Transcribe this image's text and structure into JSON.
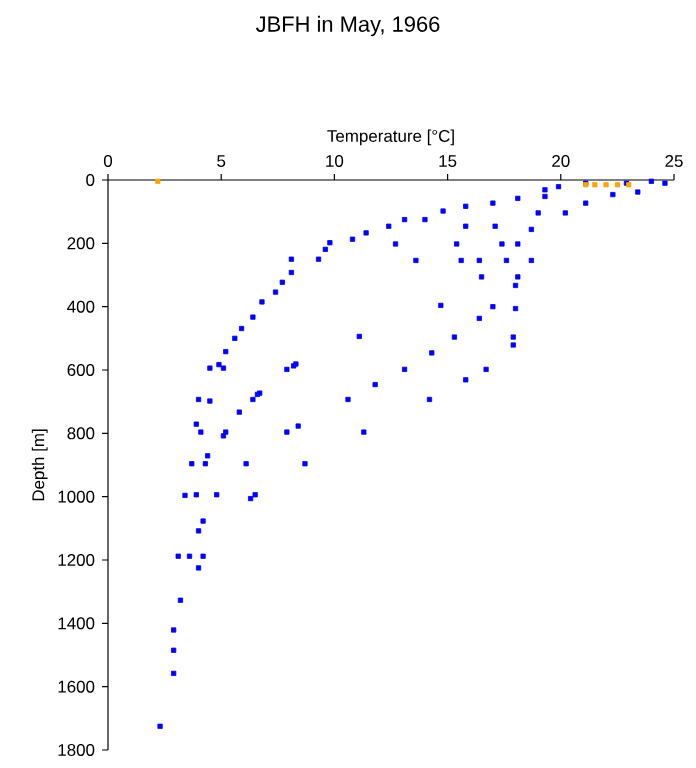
{
  "chart_data": {
    "type": "scatter",
    "title": "JBFH in May, 1966",
    "xlabel": "Temperature [°C]",
    "ylabel": "Depth [m]",
    "xlim": [
      0,
      25
    ],
    "ylim": [
      1800,
      0
    ],
    "xticks": [
      0,
      5,
      10,
      15,
      20,
      25
    ],
    "yticks": [
      0,
      200,
      400,
      600,
      800,
      1000,
      1200,
      1400,
      1600,
      1800
    ],
    "grid": false,
    "marker": "square",
    "series": [
      {
        "color": "#0000ff",
        "x": [
          4.5,
          5.1,
          5.2,
          5.6,
          5.9,
          6.4,
          6.8,
          7.4,
          7.7,
          8.1,
          8.1,
          9.3,
          9.6,
          9.8,
          10.8,
          11.4,
          12.4,
          13.1,
          14.0,
          14.8,
          15.8,
          17.0,
          18.1,
          19.3,
          19.9,
          21.1,
          22.9,
          24.0,
          24.6,
          23.4,
          22.3,
          21.1,
          20.2,
          19.3,
          12.7,
          13.6,
          15.4,
          15.8,
          17.1,
          15.6,
          16.4,
          17.6,
          18.7,
          16.5,
          18.1,
          17.4,
          18.1,
          18.7,
          19.0,
          18.0,
          14.7,
          16.4,
          17.0,
          18.0,
          17.9,
          17.9,
          11.1,
          15.3,
          14.3,
          13.1,
          16.7,
          15.8,
          11.8,
          8.2,
          7.9,
          6.7,
          4.9,
          8.3,
          10.6,
          14.2,
          4.0,
          4.5,
          5.8,
          6.6,
          6.4,
          3.9,
          4.1,
          5.2,
          5.1,
          7.9,
          8.4,
          11.3,
          4.4,
          3.7,
          4.3,
          6.1,
          8.7,
          3.4,
          3.9,
          4.8,
          6.3,
          6.5,
          4.2,
          4.0,
          3.1,
          3.6,
          4.2,
          4.0,
          3.2,
          2.9,
          2.9,
          2.9,
          2.3
        ],
        "values": [
          594,
          594,
          542,
          500,
          469,
          433,
          385,
          354,
          323,
          292,
          250,
          250,
          219,
          198,
          187,
          167,
          146,
          125,
          125,
          98,
          83,
          73,
          58,
          31,
          21,
          10,
          10,
          4,
          10,
          38,
          46,
          73,
          104,
          52,
          202,
          254,
          202,
          146,
          146,
          254,
          254,
          254,
          254,
          306,
          306,
          202,
          202,
          156,
          104,
          333,
          396,
          437,
          400,
          406,
          496,
          521,
          494,
          496,
          546,
          598,
          598,
          631,
          646,
          587,
          598,
          673,
          583,
          581,
          693,
          693,
          693,
          698,
          733,
          677,
          693,
          771,
          796,
          796,
          808,
          796,
          777,
          796,
          871,
          896,
          896,
          896,
          896,
          996,
          994,
          994,
          1006,
          994,
          1077,
          1108,
          1188,
          1188,
          1188,
          1225,
          1327,
          1421,
          1485,
          1558,
          1725
        ]
      },
      {
        "color": "#ffa500",
        "x": [
          2.2,
          21.1,
          21.5,
          22.0,
          22.5,
          23.0
        ],
        "values": [
          4,
          15,
          15,
          15,
          15,
          15
        ]
      }
    ]
  }
}
